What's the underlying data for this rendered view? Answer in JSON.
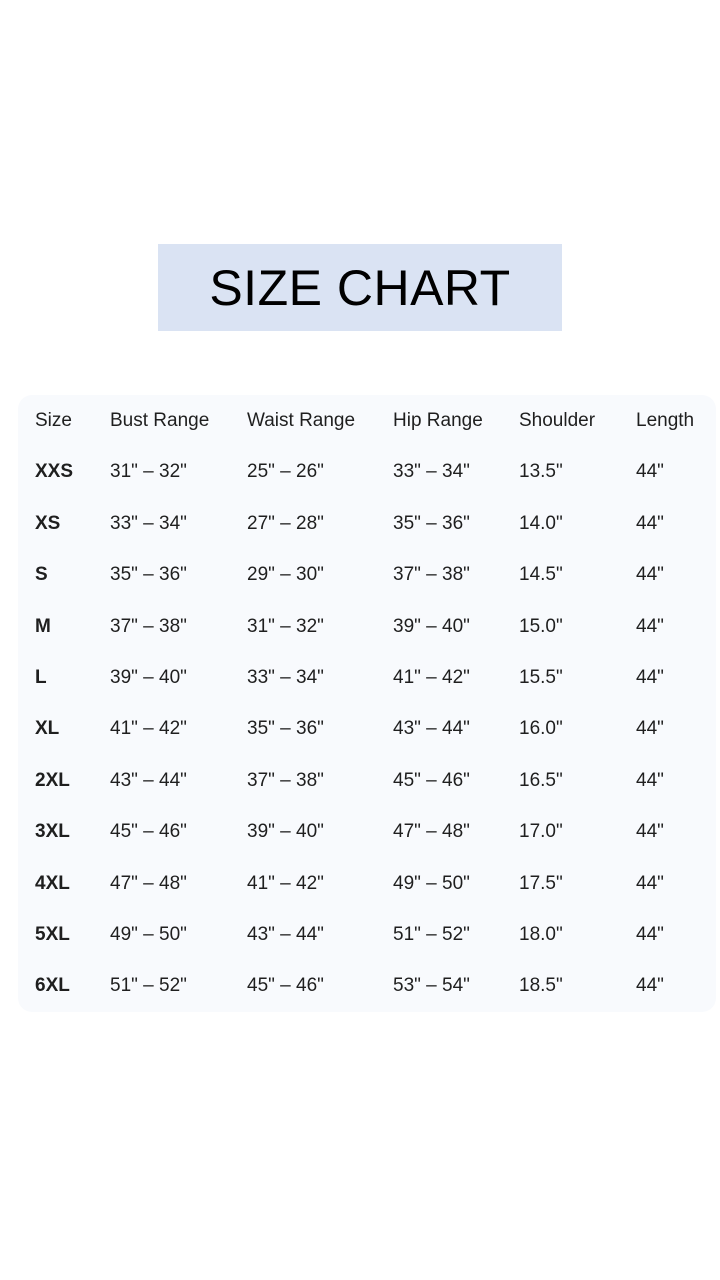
{
  "title": "SIZE CHART",
  "table": {
    "headers": [
      "Size",
      "Bust Range",
      "Waist Range",
      "Hip Range",
      "Shoulder",
      "Length"
    ],
    "rows": [
      [
        "XXS",
        "31\" – 32\"",
        "25\" – 26\"",
        "33\" – 34\"",
        "13.5\"",
        "44\""
      ],
      [
        "XS",
        "33\" – 34\"",
        "27\" – 28\"",
        "35\" – 36\"",
        "14.0\"",
        "44\""
      ],
      [
        "S",
        "35\" – 36\"",
        "29\" – 30\"",
        "37\" – 38\"",
        "14.5\"",
        "44\""
      ],
      [
        "M",
        "37\" – 38\"",
        "31\" – 32\"",
        "39\" – 40\"",
        "15.0\"",
        "44\""
      ],
      [
        "L",
        "39\" – 40\"",
        "33\" – 34\"",
        "41\" – 42\"",
        "15.5\"",
        "44\""
      ],
      [
        "XL",
        "41\" – 42\"",
        "35\" – 36\"",
        "43\" – 44\"",
        "16.0\"",
        "44\""
      ],
      [
        "2XL",
        "43\" – 44\"",
        "37\" – 38\"",
        "45\" – 46\"",
        "16.5\"",
        "44\""
      ],
      [
        "3XL",
        "45\" – 46\"",
        "39\" – 40\"",
        "47\" – 48\"",
        "17.0\"",
        "44\""
      ],
      [
        "4XL",
        "47\" – 48\"",
        "41\" – 42\"",
        "49\" – 50\"",
        "17.5\"",
        "44\""
      ],
      [
        "5XL",
        "49\" – 50\"",
        "43\" – 44\"",
        "51\" – 52\"",
        "18.0\"",
        "44\""
      ],
      [
        "6XL",
        "51\" – 52\"",
        "45\" – 46\"",
        "53\" – 54\"",
        "18.5\"",
        "44\""
      ]
    ]
  },
  "colors": {
    "title_bg": "#dae3f3",
    "panel_bg": "#f8fafd",
    "text": "#1f1f1f"
  }
}
